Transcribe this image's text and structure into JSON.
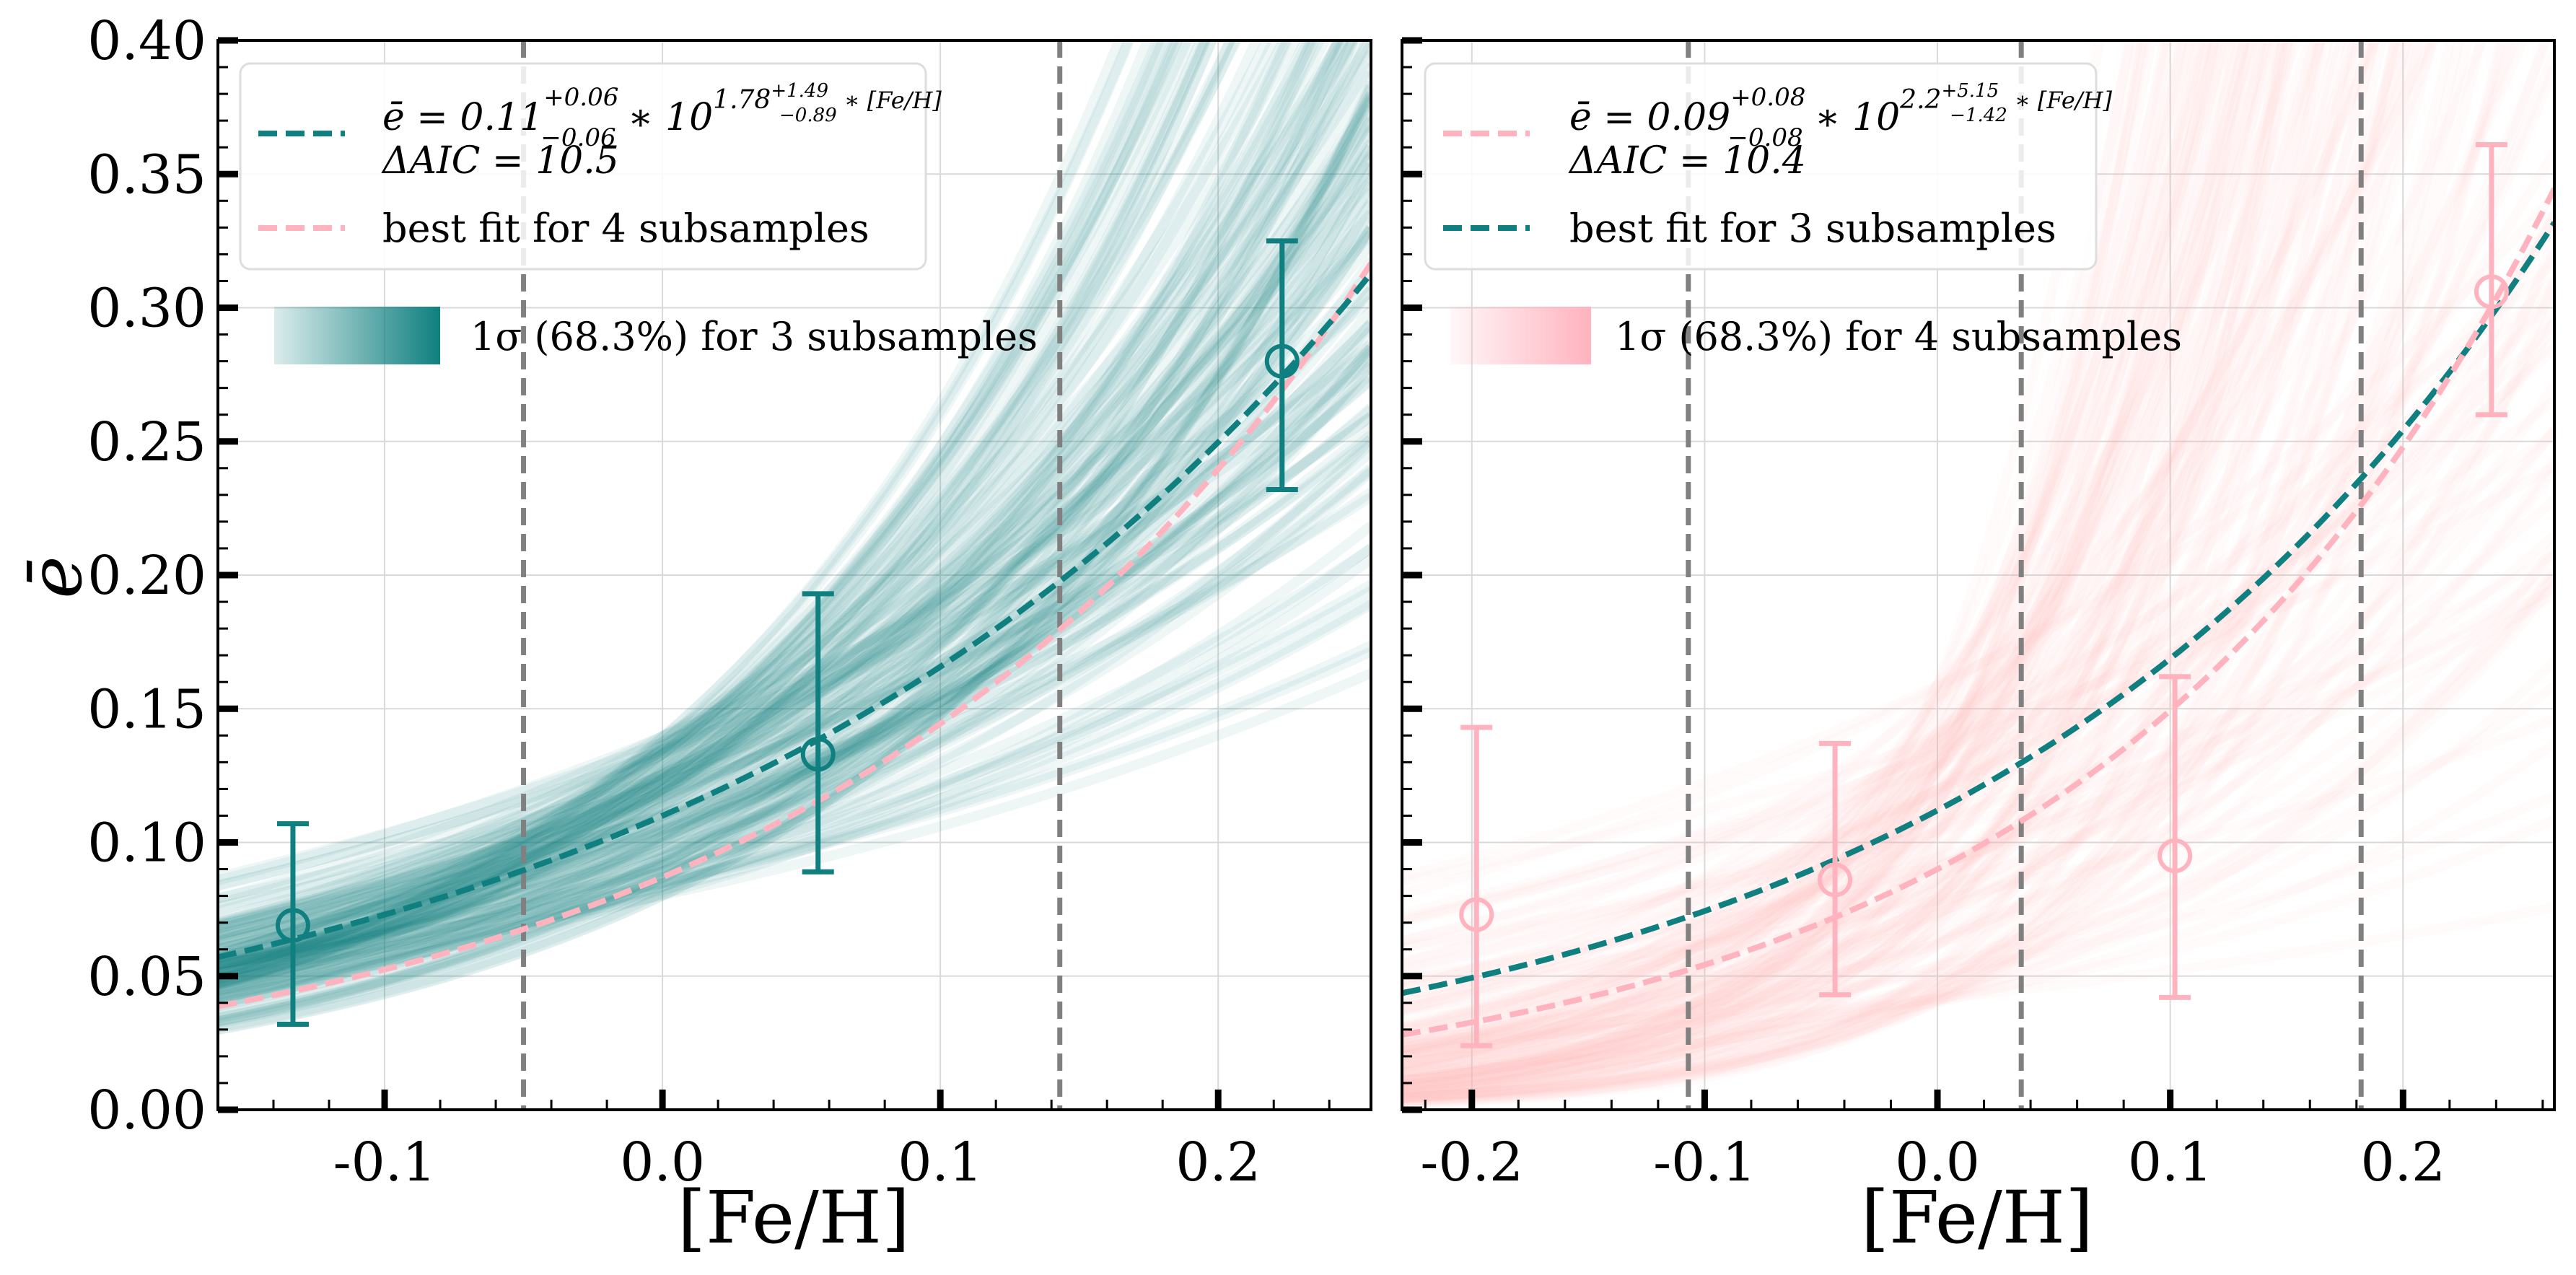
{
  "chart_data": [
    {
      "type": "line",
      "panel": "left",
      "xlabel": "[Fe/H]",
      "ylabel": "ē",
      "xlim": [
        -0.16,
        0.255
      ],
      "ylim": [
        0.0,
        0.4
      ],
      "x_ticks": [
        -0.1,
        0.0,
        0.1,
        0.2
      ],
      "x_tick_labels": [
        "-0.1",
        "0.0",
        "0.1",
        "0.2"
      ],
      "y_ticks": [
        0.0,
        0.05,
        0.1,
        0.15,
        0.2,
        0.25,
        0.3,
        0.35,
        0.4
      ],
      "y_tick_labels": [
        "0.00",
        "0.05",
        "0.10",
        "0.15",
        "0.20",
        "0.25",
        "0.30",
        "0.35",
        "0.40"
      ],
      "colors": {
        "main": "#0f7f7f",
        "other": "#ffb3bf",
        "band": "#0f7f7f",
        "vline": "#808080"
      },
      "vlines": [
        -0.05,
        0.143
      ],
      "fit_main": {
        "a": 0.11,
        "b": "1.78",
        "label_prefix": "ē = 0.11",
        "a_up": "+0.06",
        "a_dn": "−0.06",
        "pow_base": " ∗ 10",
        "b_up": "+1.49",
        "b_dn": "−0.89",
        "exp_tail": " ∗ [Fe/H]",
        "aic": "ΔAIC = 10.5"
      },
      "fit_other": {
        "a": 0.087,
        "b": 2.2,
        "label": "best fit for 4 subsamples"
      },
      "band": {
        "a_range": [
          0.08,
          0.14
        ],
        "b_range": [
          1.2,
          2.8
        ],
        "label": "1σ (68.3%) for 3 subsamples"
      },
      "points": [
        {
          "x": -0.133,
          "y": 0.069,
          "lo": 0.032,
          "hi": 0.107
        },
        {
          "x": 0.056,
          "y": 0.133,
          "lo": 0.089,
          "hi": 0.193
        },
        {
          "x": 0.223,
          "y": 0.28,
          "lo": 0.232,
          "hi": 0.325
        }
      ]
    },
    {
      "type": "line",
      "panel": "right",
      "xlabel": "[Fe/H]",
      "xlim": [
        -0.23,
        0.265
      ],
      "ylim": [
        0.0,
        0.4
      ],
      "x_ticks": [
        -0.2,
        -0.1,
        0.0,
        0.1,
        0.2
      ],
      "x_tick_labels": [
        "-0.2",
        "-0.1",
        "0.0",
        "0.1",
        "0.2"
      ],
      "y_ticks": [
        0.0,
        0.05,
        0.1,
        0.15,
        0.2,
        0.25,
        0.3,
        0.35,
        0.4
      ],
      "colors": {
        "main": "#ffb3bf",
        "other": "#0f7f7f",
        "band": "#ffb3bf",
        "vline": "#808080"
      },
      "vlines": [
        -0.107,
        0.036,
        0.182
      ],
      "fit_main": {
        "a": 0.09,
        "b": "2.2",
        "label_prefix": "ē = 0.09",
        "a_up": "+0.08",
        "a_dn": "−0.08",
        "pow_base": " ∗ 10",
        "b_up": "+5.15",
        "b_dn": "−1.42",
        "exp_tail": " ∗ [Fe/H]",
        "aic": "ΔAIC = 10.4"
      },
      "fit_other": {
        "a": 0.112,
        "b": 1.78,
        "label": "best fit for 3 subsamples"
      },
      "band": {
        "a_range": [
          0.04,
          0.16
        ],
        "b_range": [
          0.9,
          6.0
        ],
        "label": "1σ (68.3%) for 4 subsamples"
      },
      "points": [
        {
          "x": -0.198,
          "y": 0.073,
          "lo": 0.024,
          "hi": 0.143
        },
        {
          "x": -0.044,
          "y": 0.086,
          "lo": 0.043,
          "hi": 0.137
        },
        {
          "x": 0.102,
          "y": 0.095,
          "lo": 0.042,
          "hi": 0.162
        },
        {
          "x": 0.238,
          "y": 0.306,
          "lo": 0.26,
          "hi": 0.361
        }
      ]
    }
  ]
}
